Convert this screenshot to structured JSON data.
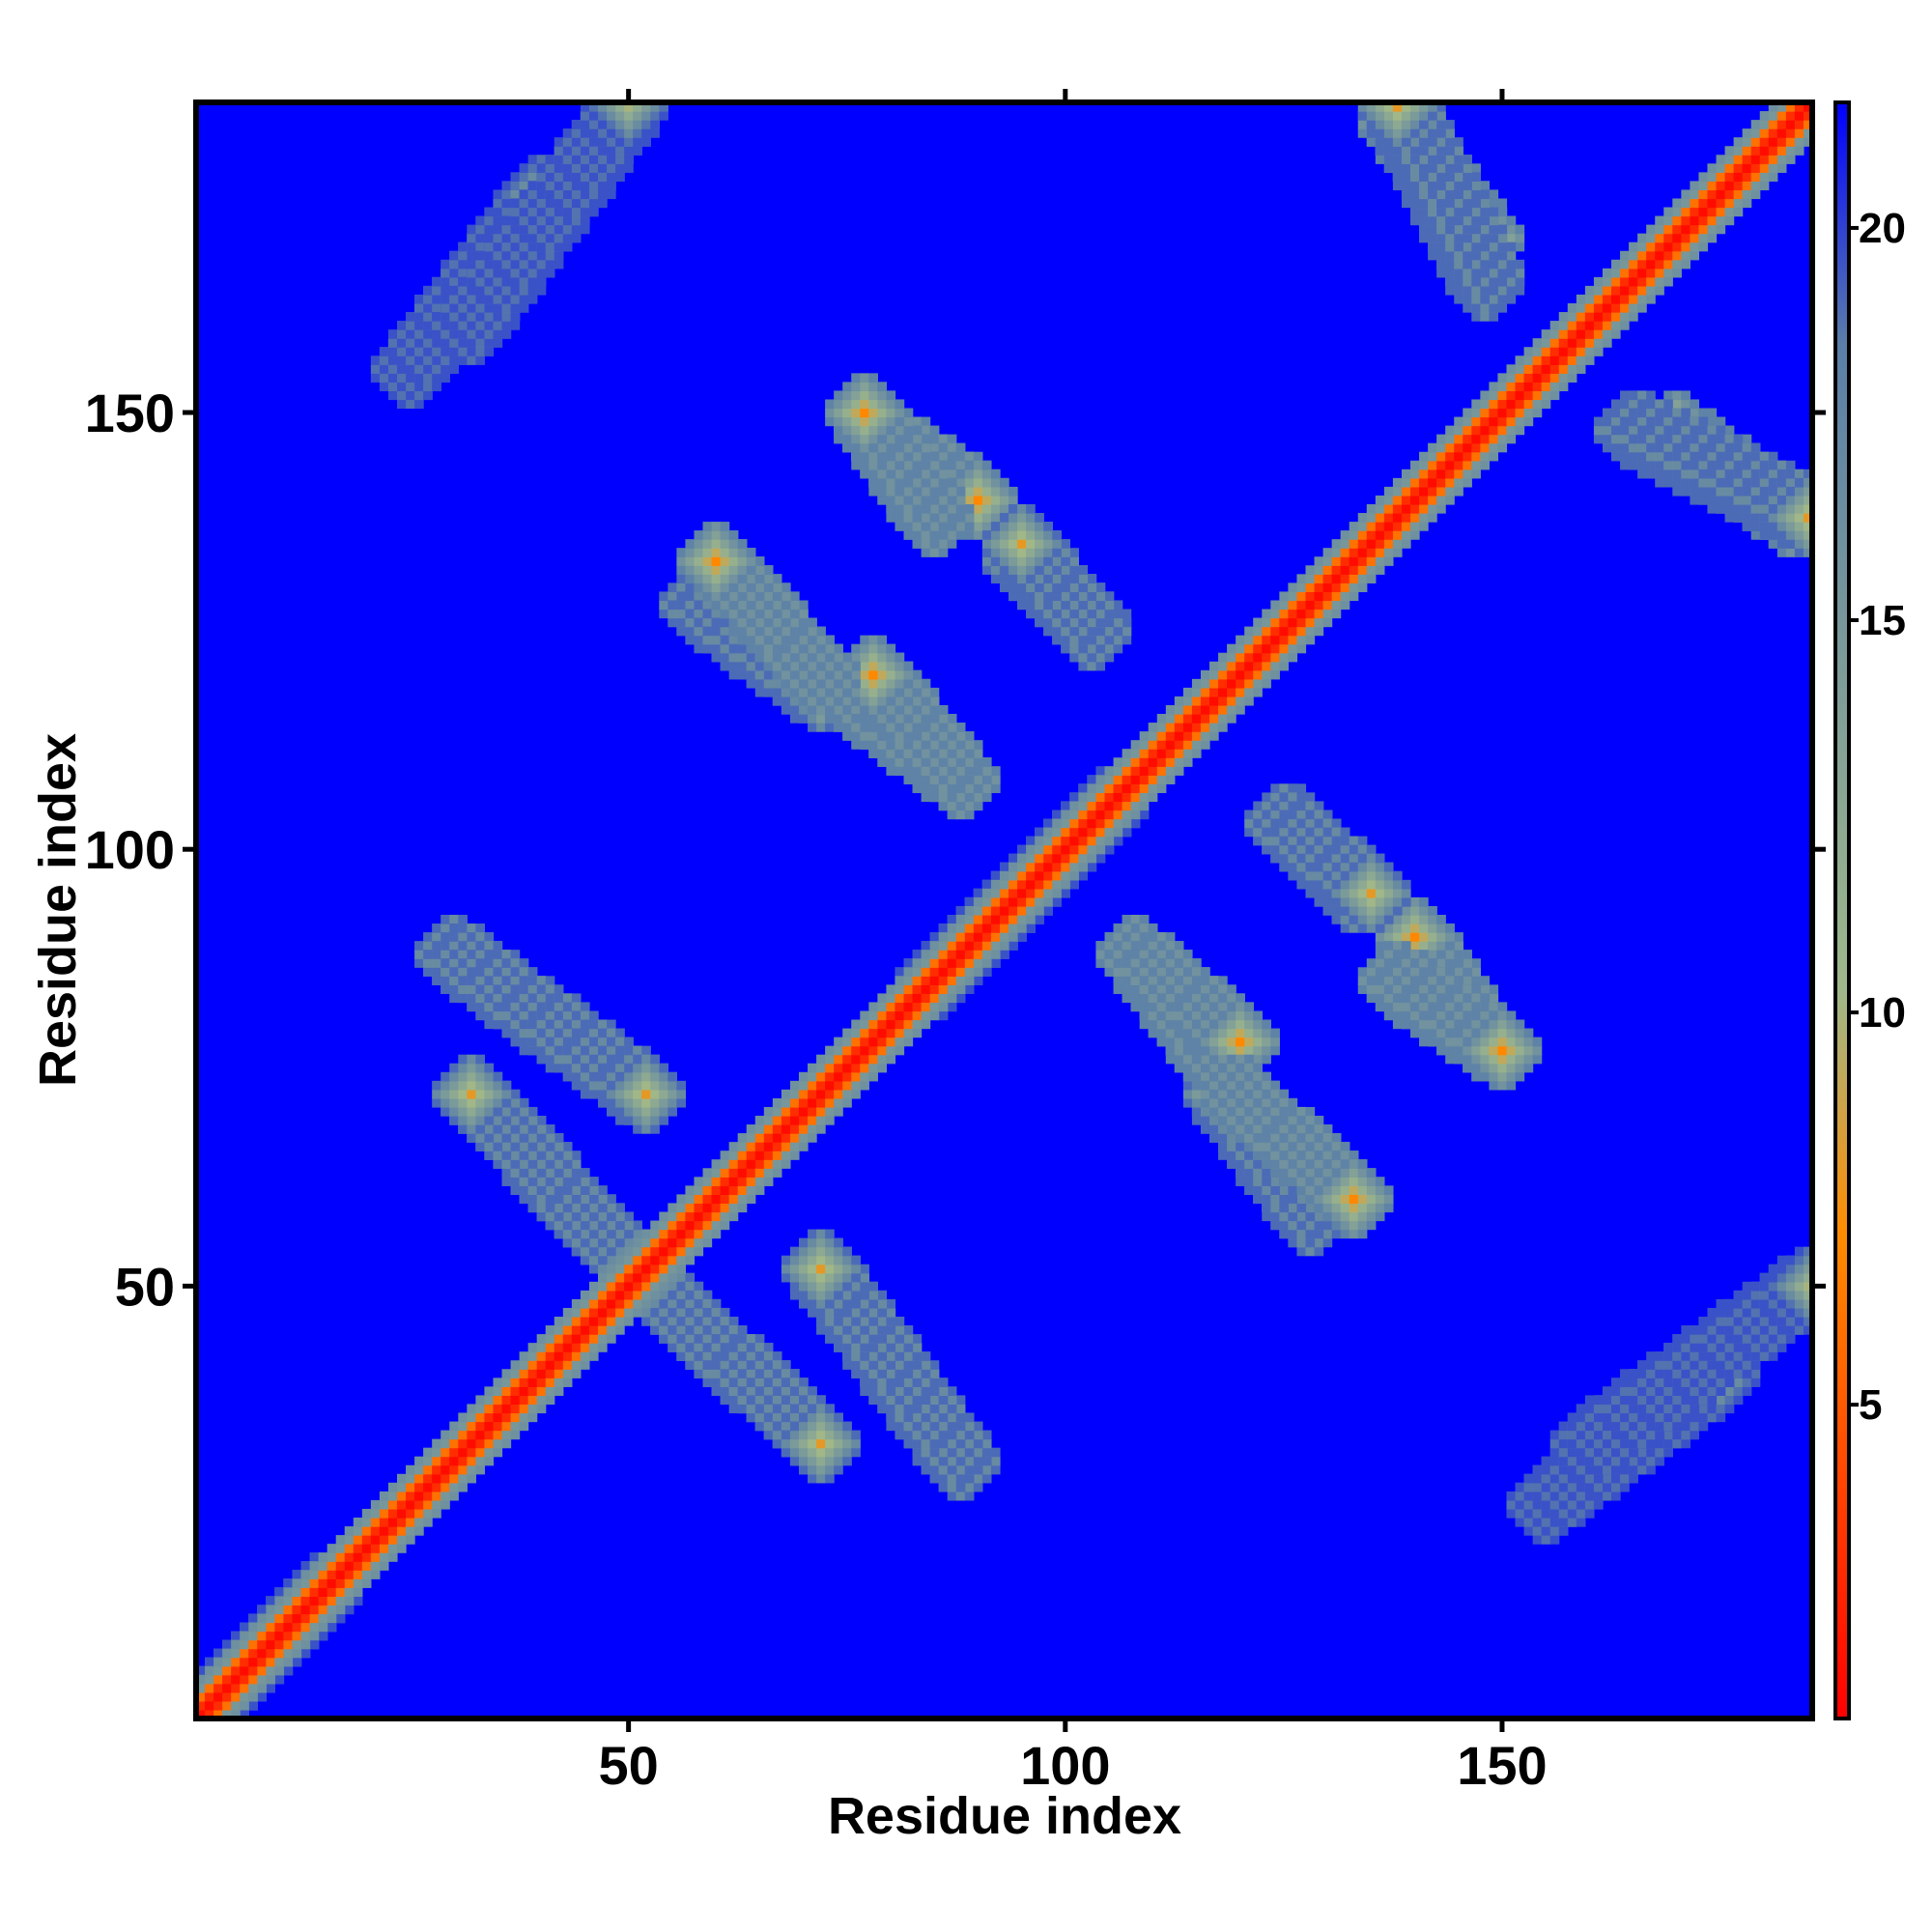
{
  "chart_data": {
    "type": "heatmap",
    "title": "",
    "xlabel": "Residue index",
    "ylabel": "Residue index",
    "xlim": [
      1,
      185
    ],
    "ylim": [
      1,
      185
    ],
    "x_ticks": [
      "50",
      "100",
      "150"
    ],
    "y_ticks": [
      "50",
      "100",
      "150"
    ],
    "colorbar": {
      "min": 1,
      "max": 21.6,
      "ticks": [
        "5",
        "10",
        "15",
        "20"
      ],
      "colors": [
        "#ff0000",
        "#ff8c00",
        "#9fb88a",
        "#5a7fa8",
        "#0000ff"
      ]
    },
    "background_value": 21.6,
    "diagonal_value": 1.5,
    "contact_bands": [
      {
        "x": [
          1,
          15
        ],
        "y": [
          1,
          15
        ],
        "value": 11
      },
      {
        "x": [
          25,
          40
        ],
        "y": [
          155,
          175
        ],
        "value": 10
      },
      {
        "x": [
          30,
          52
        ],
        "y": [
          88,
          72
        ],
        "value": 8
      },
      {
        "x": [
          55,
          72
        ],
        "y": [
          48,
          32
        ],
        "value": 8
      },
      {
        "x": [
          58,
          72
        ],
        "y": [
          128,
          118
        ],
        "value": 8
      },
      {
        "x": [
          75,
          88
        ],
        "y": [
          118,
          108
        ],
        "value": 7
      },
      {
        "x": [
          78,
          90
        ],
        "y": [
          148,
          140
        ],
        "value": 7
      },
      {
        "x": [
          95,
          103
        ],
        "y": [
          133,
          126
        ],
        "value": 8
      },
      {
        "x": [
          108,
          120
        ],
        "y": [
          88,
          78
        ],
        "value": 7
      },
      {
        "x": [
          120,
          133
        ],
        "y": [
          72,
          60
        ],
        "value": 7
      },
      {
        "x": [
          125,
          135
        ],
        "y": [
          103,
          95
        ],
        "value": 8
      },
      {
        "x": [
          138,
          150
        ],
        "y": [
          85,
          77
        ],
        "value": 7
      },
      {
        "x": [
          138,
          148
        ],
        "y": [
          183,
          170
        ],
        "value": 7
      },
      {
        "x": [
          165,
          185
        ],
        "y": [
          148,
          138
        ],
        "value": 8
      },
      {
        "x": [
          160,
          185
        ],
        "y": [
          32,
          50
        ],
        "value": 10
      },
      {
        "x": [
          85,
          105
        ],
        "y": [
          85,
          105
        ],
        "value": 11
      }
    ]
  }
}
